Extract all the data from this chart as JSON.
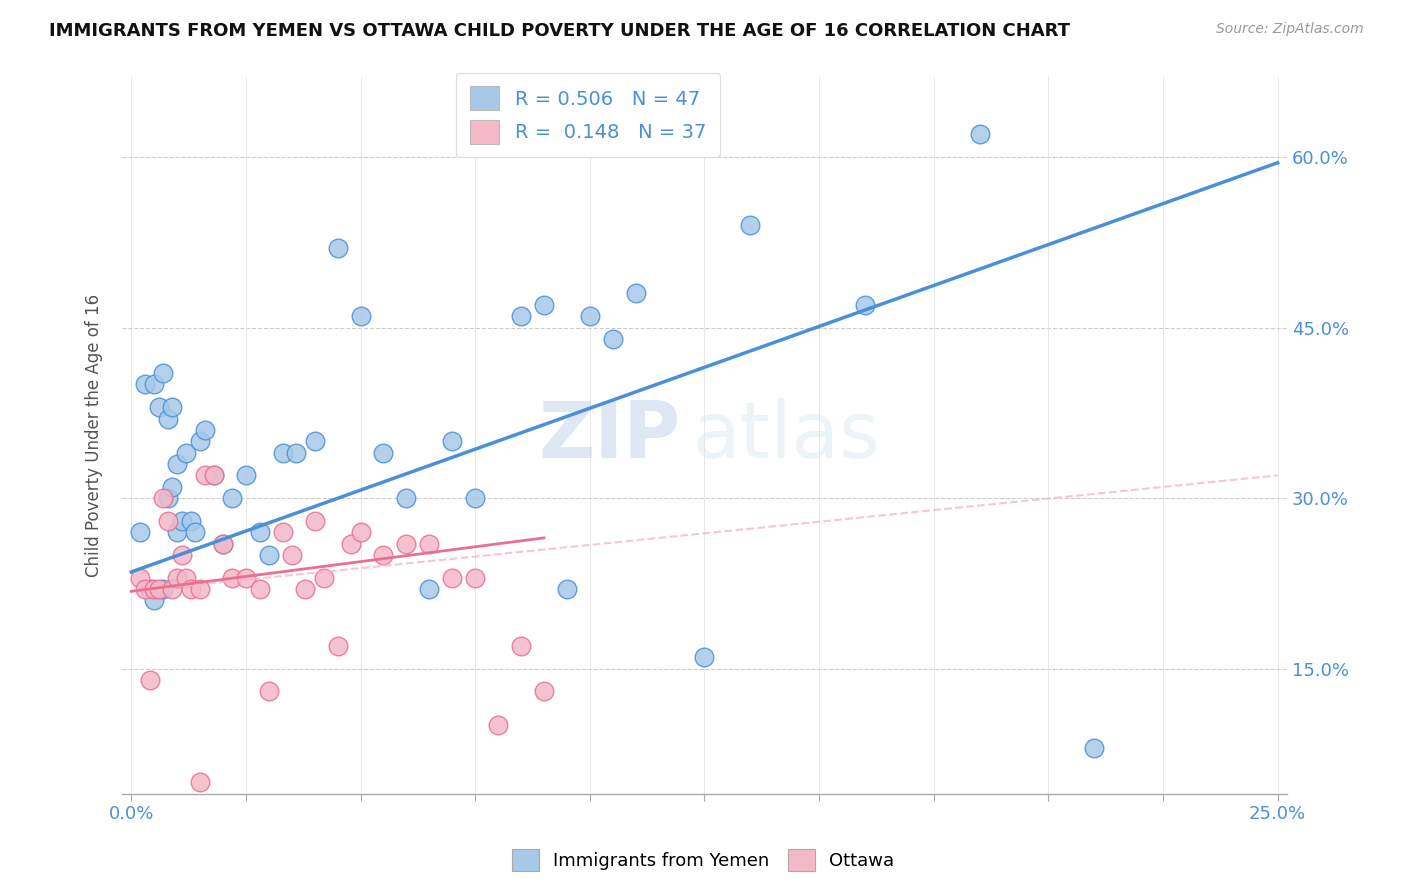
{
  "title": "IMMIGRANTS FROM YEMEN VS OTTAWA CHILD POVERTY UNDER THE AGE OF 16 CORRELATION CHART",
  "source": "Source: ZipAtlas.com",
  "ylabel": "Child Poverty Under the Age of 16",
  "yticks": [
    0.15,
    0.3,
    0.45,
    0.6
  ],
  "ytick_labels": [
    "15.0%",
    "30.0%",
    "45.0%",
    "60.0%"
  ],
  "legend1_R": "0.506",
  "legend1_N": "47",
  "legend2_R": "0.148",
  "legend2_N": "37",
  "blue_color": "#a8c8e8",
  "pink_color": "#f4b8c8",
  "blue_line_color": "#4a90d9",
  "pink_line_color": "#e87090",
  "pink_dash_color": "#f4b8c8",
  "watermark_zip": "ZIP",
  "watermark_atlas": "atlas",
  "blue_scatter_x": [
    0.002,
    0.003,
    0.004,
    0.005,
    0.005,
    0.006,
    0.007,
    0.007,
    0.008,
    0.008,
    0.009,
    0.009,
    0.01,
    0.01,
    0.011,
    0.012,
    0.013,
    0.014,
    0.015,
    0.016,
    0.018,
    0.02,
    0.022,
    0.025,
    0.028,
    0.03,
    0.033,
    0.036,
    0.04,
    0.045,
    0.05,
    0.055,
    0.06,
    0.065,
    0.07,
    0.075,
    0.085,
    0.09,
    0.095,
    0.1,
    0.11,
    0.125,
    0.135,
    0.16,
    0.185,
    0.21,
    0.105
  ],
  "blue_scatter_y": [
    0.27,
    0.4,
    0.22,
    0.4,
    0.21,
    0.38,
    0.41,
    0.22,
    0.37,
    0.3,
    0.38,
    0.31,
    0.27,
    0.33,
    0.28,
    0.34,
    0.28,
    0.27,
    0.35,
    0.36,
    0.32,
    0.26,
    0.3,
    0.32,
    0.27,
    0.25,
    0.34,
    0.34,
    0.35,
    0.52,
    0.46,
    0.34,
    0.3,
    0.22,
    0.35,
    0.3,
    0.46,
    0.47,
    0.22,
    0.46,
    0.48,
    0.16,
    0.54,
    0.47,
    0.62,
    0.08,
    0.44
  ],
  "pink_scatter_x": [
    0.002,
    0.003,
    0.004,
    0.005,
    0.006,
    0.007,
    0.008,
    0.009,
    0.01,
    0.011,
    0.012,
    0.013,
    0.015,
    0.016,
    0.018,
    0.02,
    0.022,
    0.025,
    0.028,
    0.03,
    0.033,
    0.035,
    0.038,
    0.04,
    0.042,
    0.045,
    0.048,
    0.05,
    0.055,
    0.06,
    0.065,
    0.07,
    0.075,
    0.08,
    0.085,
    0.09,
    0.015
  ],
  "pink_scatter_y": [
    0.23,
    0.22,
    0.14,
    0.22,
    0.22,
    0.3,
    0.28,
    0.22,
    0.23,
    0.25,
    0.23,
    0.22,
    0.22,
    0.32,
    0.32,
    0.26,
    0.23,
    0.23,
    0.22,
    0.13,
    0.27,
    0.25,
    0.22,
    0.28,
    0.23,
    0.17,
    0.26,
    0.27,
    0.25,
    0.26,
    0.26,
    0.23,
    0.23,
    0.1,
    0.17,
    0.13,
    0.05
  ],
  "blue_line_x": [
    0.0,
    0.25
  ],
  "blue_line_y": [
    0.235,
    0.595
  ],
  "pink_solid_line_x": [
    0.0,
    0.09
  ],
  "pink_solid_line_y": [
    0.218,
    0.265
  ],
  "pink_dash_line_x": [
    0.0,
    0.25
  ],
  "pink_dash_line_y": [
    0.218,
    0.32
  ],
  "xlim": [
    -0.002,
    0.252
  ],
  "ylim": [
    0.04,
    0.67
  ],
  "xticks": [
    0.0,
    0.025,
    0.05,
    0.075,
    0.1,
    0.125,
    0.15,
    0.175,
    0.2,
    0.225,
    0.25
  ],
  "xtick_labels_show": [
    0,
    10
  ]
}
